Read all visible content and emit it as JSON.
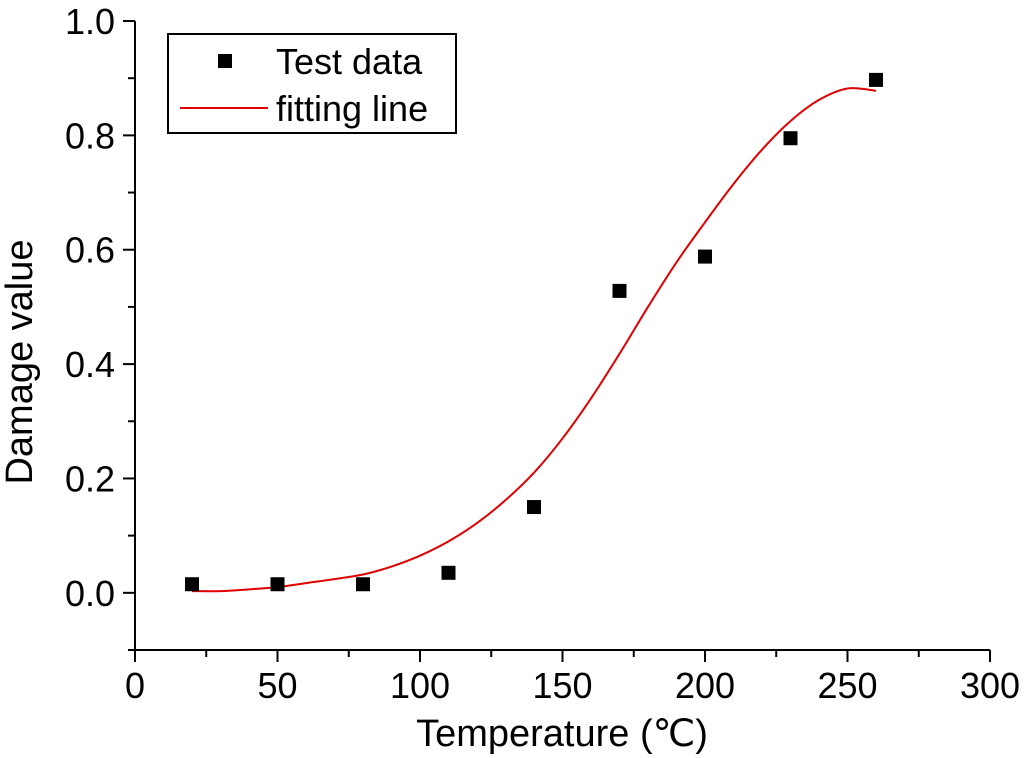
{
  "chart_data": {
    "type": "scatter",
    "xlabel": "Temperature (℃)",
    "ylabel": "Damage value",
    "xlim": [
      0,
      300
    ],
    "ylim": [
      -0.1,
      1.0
    ],
    "x_ticks": [
      0,
      50,
      100,
      150,
      200,
      250,
      300
    ],
    "x_tick_labels": [
      "0",
      "50",
      "100",
      "150",
      "200",
      "250",
      "300"
    ],
    "y_ticks": [
      0.0,
      0.2,
      0.4,
      0.6,
      0.8,
      1.0
    ],
    "y_tick_labels": [
      "0.0",
      "0.2",
      "0.4",
      "0.6",
      "0.8",
      "1.0"
    ],
    "legend_position": "top-left",
    "series": [
      {
        "name": "Test data",
        "kind": "scatter",
        "marker": "square",
        "color": "#000000",
        "x": [
          20,
          50,
          80,
          110,
          140,
          170,
          200,
          230,
          260
        ],
        "y": [
          0.015,
          0.015,
          0.015,
          0.035,
          0.15,
          0.528,
          0.588,
          0.795,
          0.897
        ]
      },
      {
        "name": "fitting line",
        "kind": "line",
        "color": "#e00000",
        "x": [
          20,
          30,
          40,
          50,
          60,
          70,
          80,
          90,
          100,
          110,
          120,
          130,
          140,
          150,
          160,
          170,
          180,
          190,
          200,
          210,
          220,
          230,
          240,
          250,
          260
        ],
        "y": [
          0.003,
          0.003,
          0.006,
          0.01,
          0.017,
          0.024,
          0.032,
          0.046,
          0.065,
          0.09,
          0.122,
          0.162,
          0.21,
          0.27,
          0.34,
          0.418,
          0.5,
          0.578,
          0.648,
          0.715,
          0.775,
          0.825,
          0.862,
          0.882,
          0.878
        ]
      }
    ]
  }
}
